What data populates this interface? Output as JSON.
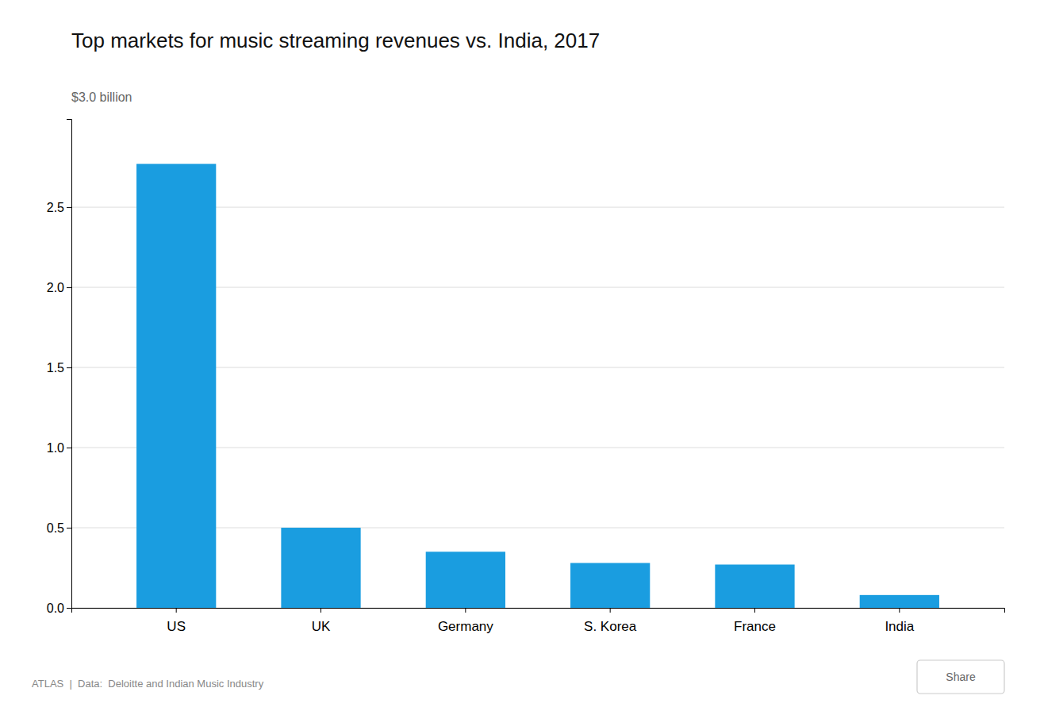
{
  "chart_data": {
    "type": "bar",
    "title": "Top markets for music streaming revenues vs. India, 2017",
    "ylabel": "$3.0 billion",
    "categories": [
      "US",
      "UK",
      "Germany",
      "S. Korea",
      "France",
      "India"
    ],
    "values": [
      2.77,
      0.5,
      0.35,
      0.28,
      0.27,
      0.08
    ],
    "color": "#1a9de0",
    "ylim": [
      0,
      3.05
    ],
    "yticks": [
      {
        "value": 0.0,
        "label": "0.0"
      },
      0.5,
      {
        "value": 1.0,
        "label": "1.0"
      },
      1.5,
      {
        "value": 2.0,
        "label": "2.0"
      },
      2.5
    ],
    "grid": true,
    "annotations": [
      "ATLAS  |  Data:  Deloitte and Indian Music Industry",
      "Share"
    ]
  }
}
